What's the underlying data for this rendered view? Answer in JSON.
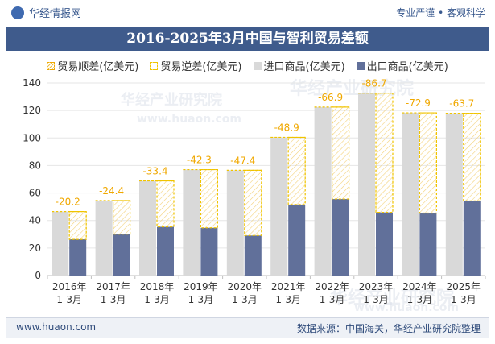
{
  "header": {
    "brand": "华经情报网",
    "tagline": "专业严谨 • 客观科学"
  },
  "chart_data": {
    "type": "bar",
    "title": "2016-2025年3月中国与智利贸易差额",
    "categories": [
      [
        "2016年",
        "1-3月"
      ],
      [
        "2017年",
        "1-3月"
      ],
      [
        "2018年",
        "1-3月"
      ],
      [
        "2019年",
        "1-3月"
      ],
      [
        "2020年",
        "1-3月"
      ],
      [
        "2021年",
        "1-3月"
      ],
      [
        "2022年",
        "1-3月"
      ],
      [
        "2023年",
        "1-3月"
      ],
      [
        "2024年",
        "1-3月"
      ],
      [
        "2025年",
        "1-3月"
      ]
    ],
    "series": [
      {
        "name": "贸易顺差(亿美元)",
        "values": [
          null,
          null,
          null,
          null,
          null,
          null,
          null,
          null,
          null,
          null
        ],
        "color": "#f0a800"
      },
      {
        "name": "贸易逆差(亿美元)",
        "values": [
          -20.2,
          -24.4,
          -33.4,
          -42.3,
          -47.4,
          -48.9,
          -66.9,
          -86.7,
          -72.9,
          -63.7
        ],
        "color": "#f0c400"
      },
      {
        "name": "进口商品(亿美元)",
        "values": [
          46.5,
          54.5,
          68.8,
          77.0,
          76.5,
          100.5,
          122.5,
          132.6,
          118.3,
          118.0
        ],
        "color": "#d9d9d9"
      },
      {
        "name": "出口商品(亿美元)",
        "values": [
          26.3,
          30.1,
          35.4,
          34.7,
          29.1,
          51.6,
          55.6,
          45.9,
          45.4,
          54.3
        ],
        "color": "#61709a"
      }
    ],
    "ylim": [
      0,
      140
    ],
    "yticks": [
      0,
      20,
      40,
      60,
      80,
      100,
      120,
      140
    ],
    "grid": true,
    "legend": "top"
  },
  "footer": {
    "website": "www.huaon.com",
    "source": "数据来源：中国海关，华经产业研究院整理"
  },
  "watermarks": [
    "华经产业研究院",
    "www.huaon.com",
    "华经产业研究院",
    "www.huaon.com"
  ]
}
